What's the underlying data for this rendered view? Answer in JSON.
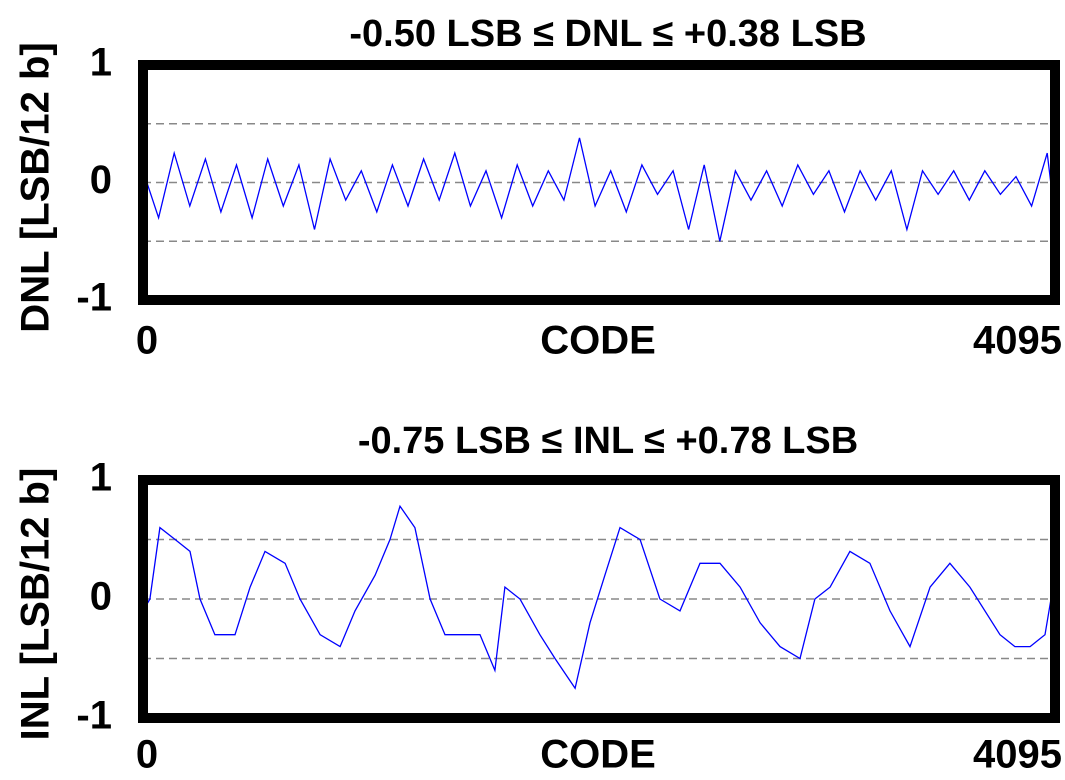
{
  "chart_data": [
    {
      "type": "line",
      "title": "-0.50 LSB ≤ DNL ≤ +0.38 LSB",
      "y_label": "DNL [LSB/12 b]",
      "x_label": "CODE",
      "xlim": [
        0,
        4095
      ],
      "xticks": [
        0,
        4095
      ],
      "ylim": [
        -1,
        1
      ],
      "yticks": [
        -1,
        0,
        1
      ],
      "grid": [
        -0.5,
        0,
        0.5
      ],
      "series": [
        {
          "color": "#0000ff",
          "x": [
            0,
            70,
            140,
            210,
            280,
            350,
            420,
            490,
            560,
            630,
            700,
            770,
            840,
            910,
            980,
            1050,
            1120,
            1190,
            1260,
            1330,
            1400,
            1470,
            1540,
            1610,
            1680,
            1750,
            1820,
            1890,
            1960,
            2030,
            2100,
            2170,
            2240,
            2310,
            2380,
            2450,
            2520,
            2590,
            2660,
            2730,
            2800,
            2870,
            2940,
            3010,
            3080,
            3150,
            3220,
            3290,
            3360,
            3430,
            3500,
            3570,
            3640,
            3710,
            3780,
            3850,
            3920,
            3990,
            4060,
            4095
          ],
          "values": [
            0.1,
            -0.3,
            0.25,
            -0.2,
            0.2,
            -0.25,
            0.15,
            -0.3,
            0.2,
            -0.2,
            0.15,
            -0.4,
            0.2,
            -0.15,
            0.1,
            -0.25,
            0.15,
            -0.2,
            0.2,
            -0.15,
            0.25,
            -0.2,
            0.1,
            -0.3,
            0.15,
            -0.2,
            0.1,
            -0.15,
            0.38,
            -0.2,
            0.1,
            -0.25,
            0.15,
            -0.1,
            0.1,
            -0.4,
            0.15,
            -0.5,
            0.1,
            -0.15,
            0.1,
            -0.2,
            0.15,
            -0.1,
            0.1,
            -0.25,
            0.1,
            -0.15,
            0.1,
            -0.4,
            0.1,
            -0.1,
            0.1,
            -0.15,
            0.1,
            -0.1,
            0.05,
            -0.2,
            0.25,
            -0.3
          ]
        }
      ]
    },
    {
      "type": "line",
      "title": "-0.75 LSB ≤ INL ≤ +0.78 LSB",
      "y_label": "INL [LSB/12 b]",
      "x_label": "CODE",
      "xlim": [
        0,
        4095
      ],
      "xticks": [
        0,
        4095
      ],
      "ylim": [
        -1,
        1
      ],
      "yticks": [
        -1,
        0,
        1
      ],
      "grid": [
        -0.5,
        0,
        0.5
      ],
      "series": [
        {
          "color": "#0000ff",
          "x": [
            0,
            31,
            76,
            144,
            211,
            256,
            323,
            413,
            481,
            548,
            638,
            705,
            795,
            885,
            952,
            1042,
            1109,
            1154,
            1221,
            1289,
            1356,
            1423,
            1513,
            1580,
            1625,
            1693,
            1782,
            1850,
            1940,
            2007,
            2074,
            2142,
            2232,
            2321,
            2411,
            2501,
            2591,
            2681,
            2771,
            2860,
            2950,
            3017,
            3085,
            3174,
            3264,
            3354,
            3444,
            3534,
            3623,
            3713,
            3848,
            3915,
            3983,
            4050,
            4095
          ],
          "values": [
            -0.1,
            0.0,
            0.6,
            0.5,
            0.4,
            0.0,
            -0.3,
            -0.3,
            0.1,
            0.4,
            0.3,
            0.0,
            -0.3,
            -0.4,
            -0.1,
            0.2,
            0.5,
            0.78,
            0.6,
            0.0,
            -0.3,
            -0.3,
            -0.3,
            -0.6,
            0.1,
            0.0,
            -0.3,
            -0.5,
            -0.75,
            -0.2,
            0.2,
            0.6,
            0.5,
            0.0,
            -0.1,
            0.3,
            0.3,
            0.1,
            -0.2,
            -0.4,
            -0.5,
            0.0,
            0.1,
            0.4,
            0.3,
            -0.1,
            -0.4,
            0.1,
            0.3,
            0.1,
            -0.3,
            -0.4,
            -0.4,
            -0.3,
            0.2
          ]
        }
      ]
    }
  ]
}
